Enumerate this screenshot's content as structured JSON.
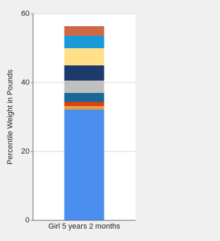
{
  "chart_data": {
    "type": "stacked_bar",
    "ylabel": "Percentile Weight in Pounds",
    "categories": [
      "Girl 5 years 2 months"
    ],
    "series": [
      {
        "color": "#4a8ef0",
        "values": [
          32.2
        ]
      },
      {
        "color": "#f0a030",
        "values": [
          1.0
        ]
      },
      {
        "color": "#d84018",
        "values": [
          1.2
        ]
      },
      {
        "color": "#1a6898",
        "values": [
          2.6
        ]
      },
      {
        "color": "#c0c0c0",
        "values": [
          3.6
        ]
      },
      {
        "color": "#1e3a6a",
        "values": [
          4.4
        ]
      },
      {
        "color": "#ffe088",
        "values": [
          5.0
        ]
      },
      {
        "color": "#1a9ad8",
        "values": [
          3.6
        ]
      },
      {
        "color": "#d06848",
        "values": [
          2.8
        ]
      }
    ],
    "ylim": [
      0,
      60
    ],
    "yticks": [
      0,
      20,
      40,
      60
    ],
    "grid": true
  }
}
